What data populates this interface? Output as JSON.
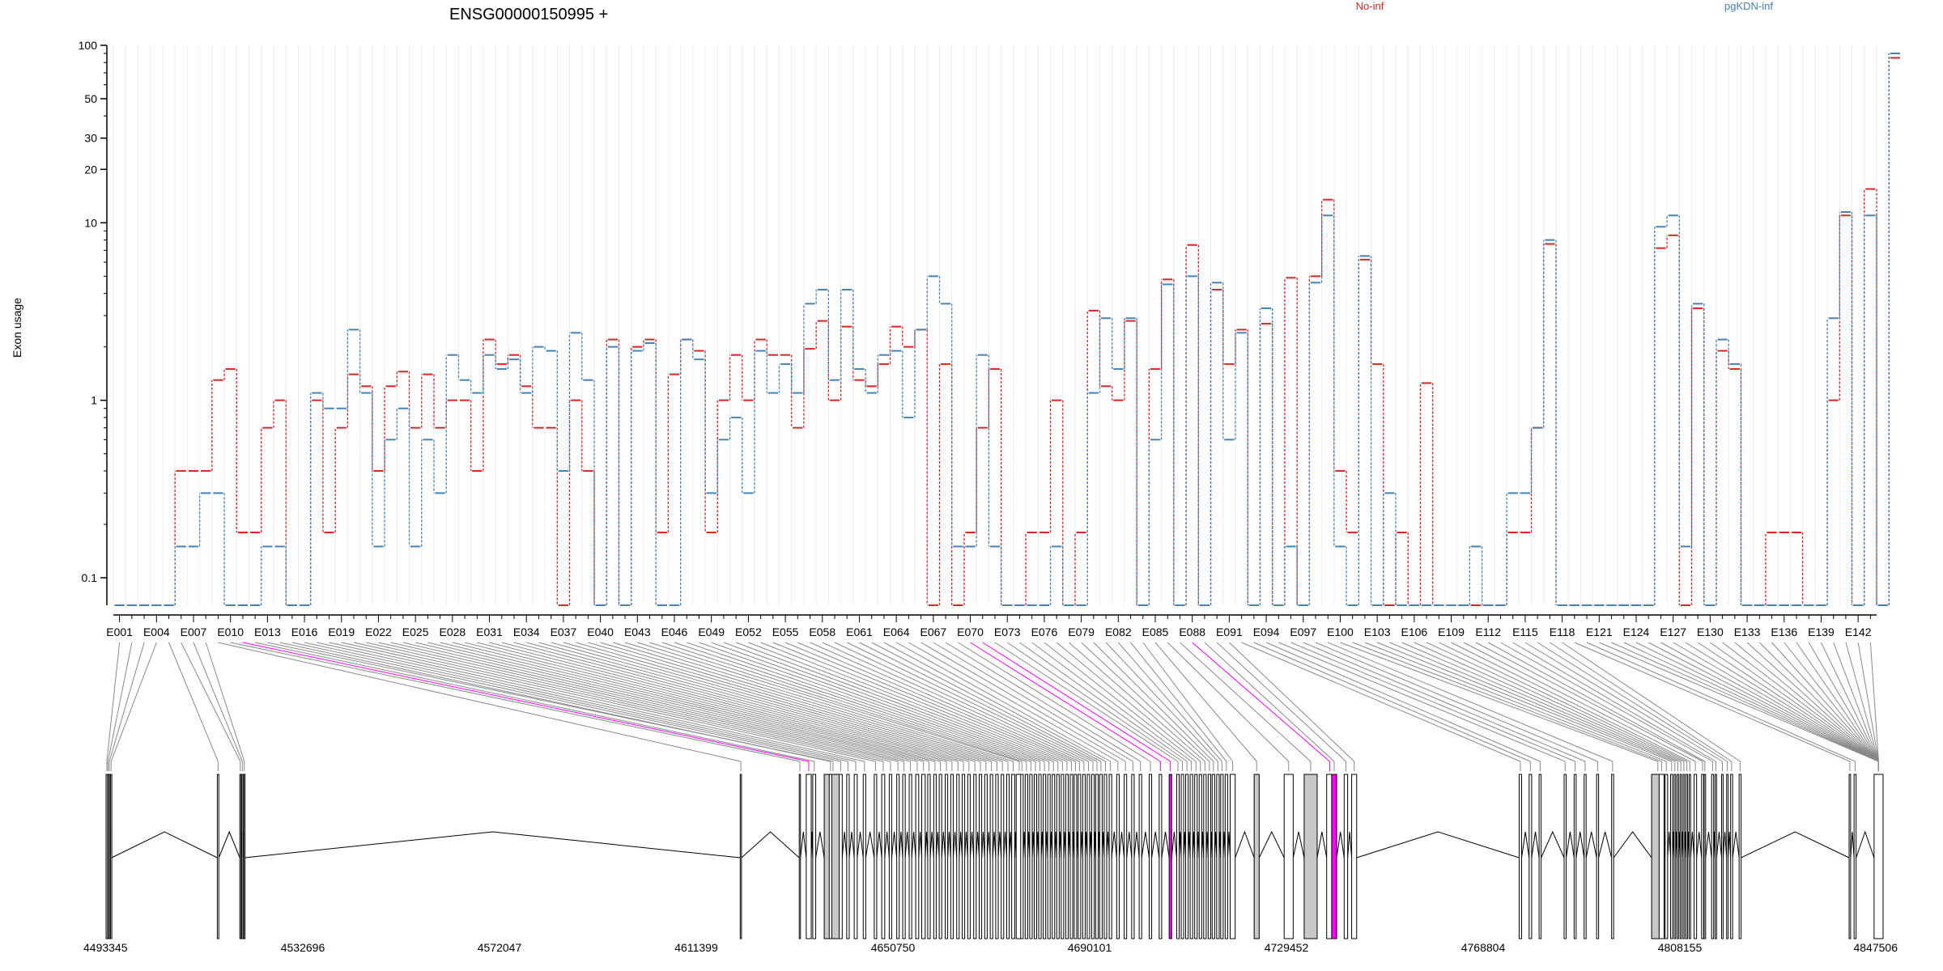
{
  "chart_data": {
    "type": "line",
    "title": "ENSG00000150995 +",
    "ylabel": "Exon usage",
    "yscale": "log",
    "ylim": [
      0.07,
      100
    ],
    "yticks": [
      0.1,
      1,
      10,
      20,
      30,
      50,
      100
    ],
    "ytick_labels": [
      "0.1",
      "1",
      "10",
      "20",
      "30",
      "50",
      "100"
    ],
    "grid": "vertical",
    "legend_placement": "top-right",
    "exons": [
      "E001",
      "E002",
      "E003",
      "E004",
      "E005",
      "E006",
      "E007",
      "E008",
      "E009",
      "E010",
      "E011",
      "E012",
      "E013",
      "E014",
      "E015",
      "E016",
      "E017",
      "E018",
      "E019",
      "E020",
      "E021",
      "E022",
      "E023",
      "E024",
      "E025",
      "E026",
      "E027",
      "E028",
      "E029",
      "E030",
      "E031",
      "E032",
      "E033",
      "E034",
      "E035",
      "E036",
      "E037",
      "E038",
      "E039",
      "E040",
      "E041",
      "E042",
      "E043",
      "E044",
      "E045",
      "E046",
      "E047",
      "E048",
      "E049",
      "E050",
      "E051",
      "E052",
      "E053",
      "E054",
      "E055",
      "E056",
      "E057",
      "E058",
      "E059",
      "E060",
      "E061",
      "E062",
      "E063",
      "E064",
      "E065",
      "E066",
      "E067",
      "E068",
      "E069",
      "E070",
      "E071",
      "E072",
      "E073",
      "E074",
      "E075",
      "E076",
      "E077",
      "E078",
      "E079",
      "E080",
      "E081",
      "E082",
      "E083",
      "E084",
      "E085",
      "E086",
      "E087",
      "E088",
      "E089",
      "E090",
      "E091",
      "E092",
      "E093",
      "E094",
      "E095",
      "E096",
      "E097",
      "E098",
      "E099",
      "E100",
      "E101",
      "E102",
      "E103",
      "E104",
      "E105",
      "E106",
      "E107",
      "E108",
      "E109",
      "E110",
      "E111",
      "E112",
      "E113",
      "E114",
      "E115",
      "E116",
      "E117",
      "E118",
      "E119",
      "E120",
      "E121",
      "E122",
      "E123",
      "E124",
      "E125",
      "E126",
      "E127",
      "E128",
      "E129",
      "E130",
      "E131",
      "E132",
      "E133",
      "E134",
      "E135",
      "E136",
      "E137",
      "E138",
      "E139",
      "E140",
      "E141",
      "E142",
      "E143"
    ],
    "tick_exons": [
      "E001",
      "E004",
      "E007",
      "E010",
      "E013",
      "E016",
      "E019",
      "E022",
      "E025",
      "E028",
      "E031",
      "E034",
      "E037",
      "E040",
      "E043",
      "E046",
      "E049",
      "E052",
      "E055",
      "E058",
      "E061",
      "E064",
      "E067",
      "E070",
      "E073",
      "E076",
      "E079",
      "E082",
      "E085",
      "E088",
      "E091",
      "E094",
      "E097",
      "E100",
      "E103",
      "E106",
      "E109",
      "E112",
      "E115",
      "E118",
      "E121",
      "E124",
      "E127",
      "E130",
      "E133",
      "E136",
      "E139",
      "E142"
    ],
    "series": [
      {
        "name": "No-inf",
        "color": "#d62728",
        "values": [
          0.07,
          0.07,
          0.07,
          0.07,
          0.07,
          0.4,
          0.4,
          0.4,
          1.3,
          1.5,
          0.18,
          0.18,
          0.7,
          1.0,
          0.07,
          0.07,
          1.0,
          0.18,
          0.7,
          1.4,
          1.2,
          0.4,
          1.2,
          1.45,
          0.7,
          1.4,
          0.7,
          1.0,
          1.0,
          0.4,
          2.2,
          1.6,
          1.8,
          1.2,
          0.7,
          0.7,
          0.07,
          1.0,
          0.4,
          0.07,
          2.2,
          0.07,
          2.0,
          2.2,
          0.18,
          1.4,
          2.2,
          1.9,
          0.18,
          1.0,
          1.8,
          1.0,
          2.2,
          1.8,
          1.8,
          0.7,
          1.95,
          2.8,
          1.0,
          2.6,
          1.3,
          1.2,
          1.6,
          2.6,
          2.0,
          2.5,
          0.07,
          1.6,
          0.07,
          0.18,
          0.7,
          1.5,
          0.07,
          0.07,
          0.18,
          0.18,
          1.0,
          0.07,
          0.18,
          3.2,
          1.2,
          1.0,
          2.8,
          0.07,
          1.5,
          4.8,
          0.07,
          7.5,
          0.07,
          4.2,
          1.6,
          2.5,
          0.07,
          2.7,
          0.07,
          4.9,
          0.07,
          5.0,
          13.5,
          0.4,
          0.18,
          6.2,
          1.6,
          0.07,
          0.18,
          0.07,
          1.25,
          0.07,
          0.07,
          0.07,
          0.07,
          0.07,
          0.07,
          0.18,
          0.18,
          0.7,
          7.6,
          0.07,
          0.07,
          0.07,
          0.07,
          0.07,
          0.07,
          0.07,
          0.07,
          7.2,
          8.5,
          0.07,
          3.3,
          0.07,
          1.9,
          1.5,
          0.07,
          0.07,
          0.18,
          0.18,
          0.18,
          0.07,
          0.07,
          1.0,
          11.0,
          0.07,
          15.5,
          0.07,
          85.0
        ]
      },
      {
        "name": "pgKDN-inf",
        "color": "#4682b4",
        "values": [
          0.07,
          0.07,
          0.07,
          0.07,
          0.07,
          0.15,
          0.15,
          0.3,
          0.3,
          0.07,
          0.07,
          0.07,
          0.15,
          0.15,
          0.07,
          0.07,
          1.1,
          0.9,
          0.9,
          2.5,
          1.1,
          0.15,
          0.6,
          0.9,
          0.15,
          0.6,
          0.3,
          1.8,
          1.3,
          1.1,
          1.8,
          1.5,
          1.7,
          1.1,
          2.0,
          1.9,
          0.4,
          2.4,
          1.3,
          0.07,
          2.0,
          0.07,
          1.9,
          2.1,
          0.07,
          0.07,
          2.2,
          1.7,
          0.3,
          0.6,
          0.8,
          0.3,
          1.9,
          1.1,
          1.6,
          1.1,
          3.5,
          4.2,
          1.3,
          4.2,
          1.5,
          1.1,
          1.8,
          1.9,
          0.8,
          2.5,
          5.0,
          3.5,
          0.15,
          0.15,
          1.8,
          0.15,
          0.07,
          0.07,
          0.07,
          0.07,
          0.15,
          0.07,
          0.07,
          1.1,
          2.9,
          1.5,
          2.9,
          0.07,
          0.6,
          4.5,
          0.07,
          5.0,
          0.07,
          4.6,
          0.6,
          2.4,
          0.07,
          3.3,
          0.07,
          0.15,
          0.07,
          4.6,
          11.0,
          0.15,
          0.07,
          6.5,
          0.07,
          0.3,
          0.07,
          0.07,
          0.07,
          0.07,
          0.07,
          0.07,
          0.15,
          0.07,
          0.07,
          0.3,
          0.3,
          0.7,
          8.0,
          0.07,
          0.07,
          0.07,
          0.07,
          0.07,
          0.07,
          0.07,
          0.07,
          9.5,
          11.0,
          0.15,
          3.5,
          0.07,
          2.2,
          1.6,
          0.07,
          0.07,
          0.07,
          0.07,
          0.07,
          0.07,
          0.07,
          2.9,
          11.5,
          0.07,
          11.0,
          0.07,
          90.0
        ]
      }
    ],
    "genomic_axis": {
      "range": [
        4493345,
        4847506
      ],
      "ticks": [
        4493345,
        4532696,
        4572047,
        4611399,
        4650750,
        4690101,
        4729452,
        4768804,
        4808155,
        4847506
      ],
      "tick_labels": [
        "4493345",
        "4532696",
        "4572047",
        "4611399",
        "4650750",
        "4690101",
        "4729452",
        "4768804",
        "4808155",
        "4847506"
      ]
    },
    "gene_model": {
      "exon_fill": "#ffffff",
      "expressed_fill": "#c8c8c8",
      "highlight_color": "#ff00ff",
      "exon_starts": [
        4493345,
        4493650,
        4493900,
        4494250,
        4515600,
        4520100,
        4520500,
        4520900,
        4620200,
        4632000,
        4633400,
        4634700,
        4637000,
        4638000,
        4640000,
        4641500,
        4643000,
        4644800,
        4647000,
        4648500,
        4650000,
        4651500,
        4652700,
        4654000,
        4655300,
        4656500,
        4657700,
        4658900,
        4660000,
        4661200,
        4662300,
        4663500,
        4664600,
        4665700,
        4666900,
        4668000,
        4669100,
        4670200,
        4671300,
        4672400,
        4673500,
        4674500,
        4675400,
        4676300,
        4677200,
        4678100,
        4679000,
        4679900,
        4680800,
        4681700,
        4682600,
        4683500,
        4684400,
        4685300,
        4686200,
        4687000,
        4687800,
        4688700,
        4689600,
        4690500,
        4691300,
        4692100,
        4693000,
        4694000,
        4695500,
        4697000,
        4698500,
        4700000,
        4702000,
        4704000,
        4706000,
        4707500,
        4708400,
        4709300,
        4710200,
        4711100,
        4712000,
        4712900,
        4713800,
        4714600,
        4715500,
        4716300,
        4717200,
        4718200,
        4723000,
        4729000,
        4733000,
        4737500,
        4738500,
        4741000,
        4742500,
        4776000,
        4778000,
        4780000,
        4785000,
        4787000,
        4789000,
        4791500,
        4794500,
        4802500,
        4804000,
        4805200,
        4806300,
        4807000,
        4807600,
        4808200,
        4808800,
        4809400,
        4810000,
        4811000,
        4812500,
        4813000,
        4814500,
        4815200,
        4816500,
        4817500,
        4818300,
        4820000,
        4842000,
        4843000,
        4847000
      ],
      "exon_lengths": [
        300,
        150,
        200,
        200,
        300,
        200,
        200,
        200,
        250,
        250,
        1000,
        600,
        3500,
        500,
        600,
        500,
        600,
        500,
        500,
        600,
        500,
        500,
        500,
        500,
        600,
        700,
        500,
        500,
        500,
        500,
        500,
        500,
        500,
        500,
        500,
        500,
        500,
        500,
        500,
        500,
        500,
        600,
        1200,
        500,
        500,
        500,
        500,
        500,
        500,
        500,
        500,
        500,
        500,
        500,
        500,
        500,
        500,
        500,
        500,
        500,
        500,
        500,
        500,
        500,
        500,
        500,
        500,
        500,
        500,
        500,
        500,
        500,
        500,
        500,
        500,
        500,
        500,
        500,
        500,
        500,
        500,
        500,
        500,
        1000,
        1000,
        1800,
        2600,
        1200,
        1000,
        700,
        1000,
        500,
        500,
        400,
        400,
        400,
        400,
        400,
        400,
        2500,
        1000,
        500,
        400,
        300,
        300,
        300,
        300,
        300,
        300,
        500,
        400,
        300,
        400,
        300,
        300,
        300,
        400,
        400,
        300,
        400,
        1800
      ],
      "expressed_exons": [
        12,
        84,
        86,
        88,
        99,
        122
      ],
      "highlighted_exons": [
        70,
        88
      ],
      "highlighted_connectors": [
        10,
        69,
        70,
        87
      ]
    }
  },
  "legend": {
    "series_a": "No-inf",
    "series_b": "pgKDN-inf"
  }
}
